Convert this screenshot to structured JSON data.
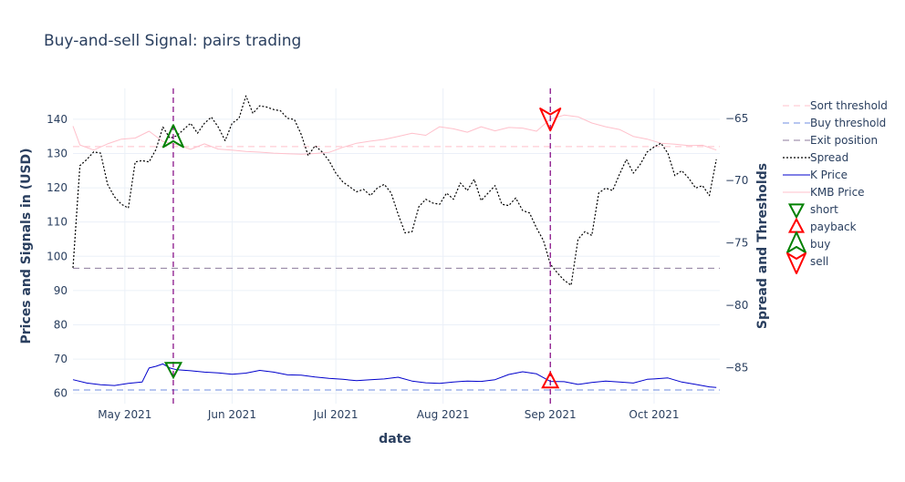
{
  "chart_data": {
    "type": "line",
    "title": "Buy-and-sell Signal: pairs trading",
    "xlabel": "date",
    "ylabel_left": "Prices and Signals in (USD)",
    "ylabel_right": "Spread and Thresholds",
    "x_range": [
      "2021-04-16",
      "2021-10-20"
    ],
    "x_ticks": [
      {
        "date": "2021-05-01",
        "label": "May 2021"
      },
      {
        "date": "2021-06-01",
        "label": "Jun 2021"
      },
      {
        "date": "2021-07-01",
        "label": "Jul 2021"
      },
      {
        "date": "2021-08-01",
        "label": "Aug 2021"
      },
      {
        "date": "2021-09-01",
        "label": "Sep 2021"
      },
      {
        "date": "2021-10-01",
        "label": "Oct 2021"
      }
    ],
    "y_left_range": [
      57,
      149
    ],
    "y_left_ticks": [
      60,
      70,
      80,
      90,
      100,
      110,
      120,
      130,
      140
    ],
    "y_right_range": [
      -87.9,
      -62.6
    ],
    "y_right_ticks": [
      -85,
      -80,
      -75,
      -70,
      -65
    ],
    "grid": true,
    "legend_position": "right",
    "colors": {
      "sort_threshold": "#ffc0cb",
      "buy_threshold": "#6f8ee0",
      "exit_position": "#8c7b9c",
      "spread": "#000000",
      "k_price": "#0000cc",
      "kmb_price": "#ffc0cb",
      "short": "#008000",
      "payback": "#ff0000",
      "buy": "#008000",
      "sell": "#ff0000",
      "signal_lines": "#800080",
      "text": "#2a3f5f",
      "grid": "#ebf0f8"
    },
    "legend": [
      {
        "key": "sort",
        "label": "Sort threshold",
        "kind": "dash",
        "color": "#ffc0cb"
      },
      {
        "key": "buy_thr",
        "label": "Buy threshold",
        "kind": "dash",
        "color": "#6f8ee0"
      },
      {
        "key": "exit",
        "label": "Exit position",
        "kind": "dash",
        "color": "#8c7b9c"
      },
      {
        "key": "spread",
        "label": "Spread",
        "kind": "dot",
        "color": "#000000"
      },
      {
        "key": "k",
        "label": "K Price",
        "kind": "line",
        "color": "#0000cc"
      },
      {
        "key": "kmb",
        "label": "KMB Price",
        "kind": "line",
        "color": "#ffc0cb"
      },
      {
        "key": "short",
        "label": "short",
        "kind": "tri-down",
        "color": "#008000"
      },
      {
        "key": "payback",
        "label": "payback",
        "kind": "tri-up",
        "color": "#ff0000"
      },
      {
        "key": "buy_sig",
        "label": "buy",
        "kind": "tri-up-big",
        "color": "#008000"
      },
      {
        "key": "sell_sig",
        "label": "sell",
        "kind": "tri-down-big",
        "color": "#ff0000"
      }
    ],
    "series": [
      {
        "name": "Sort threshold",
        "axis": "left",
        "style": "dash",
        "x": [
          "2021-04-16",
          "2021-10-20"
        ],
        "values": [
          132,
          132
        ]
      },
      {
        "name": "Buy threshold",
        "axis": "left",
        "style": "dash",
        "x": [
          "2021-04-16",
          "2021-10-20"
        ],
        "values": [
          61,
          61
        ]
      },
      {
        "name": "Exit position",
        "axis": "left",
        "style": "dash",
        "x": [
          "2021-04-16",
          "2021-10-20"
        ],
        "values": [
          96.5,
          96.5
        ]
      },
      {
        "name": "Spread",
        "axis": "right",
        "style": "dot",
        "x": [
          "2021-04-16",
          "2021-04-18",
          "2021-04-20",
          "2021-04-22",
          "2021-04-24",
          "2021-04-26",
          "2021-04-28",
          "2021-04-30",
          "2021-05-02",
          "2021-05-04",
          "2021-05-06",
          "2021-05-08",
          "2021-05-10",
          "2021-05-12",
          "2021-05-14",
          "2021-05-16",
          "2021-05-18",
          "2021-05-20",
          "2021-05-22",
          "2021-05-24",
          "2021-05-26",
          "2021-05-28",
          "2021-05-30",
          "2021-06-01",
          "2021-06-03",
          "2021-06-05",
          "2021-06-07",
          "2021-06-09",
          "2021-06-11",
          "2021-06-13",
          "2021-06-15",
          "2021-06-17",
          "2021-06-19",
          "2021-06-21",
          "2021-06-23",
          "2021-06-25",
          "2021-06-27",
          "2021-06-29",
          "2021-07-01",
          "2021-07-03",
          "2021-07-05",
          "2021-07-07",
          "2021-07-09",
          "2021-07-11",
          "2021-07-13",
          "2021-07-15",
          "2021-07-17",
          "2021-07-19",
          "2021-07-21",
          "2021-07-23",
          "2021-07-25",
          "2021-07-27",
          "2021-07-29",
          "2021-07-31",
          "2021-08-02",
          "2021-08-04",
          "2021-08-06",
          "2021-08-08",
          "2021-08-10",
          "2021-08-12",
          "2021-08-14",
          "2021-08-16",
          "2021-08-18",
          "2021-08-20",
          "2021-08-22",
          "2021-08-24",
          "2021-08-26",
          "2021-08-28",
          "2021-08-30",
          "2021-09-01",
          "2021-09-03",
          "2021-09-05",
          "2021-09-07",
          "2021-09-09",
          "2021-09-11",
          "2021-09-13",
          "2021-09-15",
          "2021-09-17",
          "2021-09-19",
          "2021-09-21",
          "2021-09-23",
          "2021-09-25",
          "2021-09-27",
          "2021-09-29",
          "2021-10-01",
          "2021-10-03",
          "2021-10-05",
          "2021-10-07",
          "2021-10-09",
          "2021-10-11",
          "2021-10-13",
          "2021-10-15",
          "2021-10-17",
          "2021-10-19"
        ],
        "values": [
          -77.0,
          -68.8,
          -68.3,
          -67.7,
          -67.8,
          -70.3,
          -71.3,
          -71.9,
          -72.2,
          -68.5,
          -68.4,
          -68.5,
          -67.5,
          -65.7,
          -66.6,
          -66.4,
          -65.9,
          -65.4,
          -66.2,
          -65.4,
          -64.9,
          -65.7,
          -66.8,
          -65.4,
          -65.0,
          -63.2,
          -64.6,
          -64.0,
          -64.1,
          -64.3,
          -64.4,
          -65.0,
          -65.1,
          -66.3,
          -68.0,
          -67.2,
          -67.7,
          -68.4,
          -69.4,
          -70.1,
          -70.5,
          -70.9,
          -70.7,
          -71.2,
          -70.6,
          -70.3,
          -71.0,
          -72.7,
          -74.2,
          -74.1,
          -72.1,
          -71.5,
          -71.8,
          -71.9,
          -71.0,
          -71.5,
          -70.2,
          -70.8,
          -69.9,
          -71.6,
          -71.0,
          -70.4,
          -71.9,
          -72.0,
          -71.4,
          -72.4,
          -72.6,
          -73.8,
          -74.8,
          -76.7,
          -77.4,
          -78.0,
          -78.4,
          -74.7,
          -74.1,
          -74.4,
          -71.0,
          -70.6,
          -70.8,
          -69.5,
          -68.3,
          -69.4,
          -68.7,
          -67.7,
          -67.3,
          -67.0,
          -67.8,
          -69.6,
          -69.2,
          -69.8,
          -70.6,
          -70.4,
          -71.2,
          -68.3
        ]
      },
      {
        "name": "K Price",
        "axis": "left",
        "style": "line",
        "x": [
          "2021-04-16",
          "2021-04-20",
          "2021-04-24",
          "2021-04-28",
          "2021-05-02",
          "2021-05-06",
          "2021-05-08",
          "2021-05-10",
          "2021-05-12",
          "2021-05-14",
          "2021-05-16",
          "2021-05-20",
          "2021-05-24",
          "2021-05-28",
          "2021-06-01",
          "2021-06-05",
          "2021-06-09",
          "2021-06-13",
          "2021-06-17",
          "2021-06-21",
          "2021-06-25",
          "2021-06-29",
          "2021-07-03",
          "2021-07-07",
          "2021-07-11",
          "2021-07-15",
          "2021-07-19",
          "2021-07-23",
          "2021-07-27",
          "2021-07-31",
          "2021-08-04",
          "2021-08-08",
          "2021-08-12",
          "2021-08-16",
          "2021-08-20",
          "2021-08-24",
          "2021-08-28",
          "2021-09-01",
          "2021-09-05",
          "2021-09-09",
          "2021-09-13",
          "2021-09-17",
          "2021-09-21",
          "2021-09-25",
          "2021-09-29",
          "2021-10-01",
          "2021-10-05",
          "2021-10-09",
          "2021-10-13",
          "2021-10-17",
          "2021-10-19"
        ],
        "values": [
          64.0,
          63.0,
          62.5,
          62.3,
          62.9,
          63.3,
          67.4,
          67.9,
          68.6,
          67.4,
          66.9,
          66.6,
          66.2,
          66.0,
          65.6,
          65.9,
          66.7,
          66.2,
          65.4,
          65.3,
          64.8,
          64.4,
          64.1,
          63.7,
          64.0,
          64.2,
          64.7,
          63.6,
          63.1,
          62.9,
          63.3,
          63.6,
          63.5,
          64.0,
          65.5,
          66.3,
          65.7,
          63.5,
          63.4,
          62.6,
          63.2,
          63.6,
          63.3,
          63.0,
          64.1,
          64.2,
          64.5,
          63.3,
          62.6,
          61.9,
          61.7
        ]
      },
      {
        "name": "KMB Price",
        "axis": "left",
        "style": "line",
        "x": [
          "2021-04-16",
          "2021-04-18",
          "2021-04-22",
          "2021-04-26",
          "2021-04-30",
          "2021-05-04",
          "2021-05-08",
          "2021-05-12",
          "2021-05-16",
          "2021-05-20",
          "2021-05-24",
          "2021-05-28",
          "2021-06-01",
          "2021-06-05",
          "2021-06-09",
          "2021-06-13",
          "2021-06-17",
          "2021-06-21",
          "2021-06-25",
          "2021-06-29",
          "2021-07-03",
          "2021-07-07",
          "2021-07-11",
          "2021-07-15",
          "2021-07-19",
          "2021-07-23",
          "2021-07-27",
          "2021-07-31",
          "2021-08-04",
          "2021-08-08",
          "2021-08-12",
          "2021-08-16",
          "2021-08-20",
          "2021-08-24",
          "2021-08-28",
          "2021-09-01",
          "2021-09-05",
          "2021-09-09",
          "2021-09-13",
          "2021-09-17",
          "2021-09-21",
          "2021-09-25",
          "2021-09-29",
          "2021-10-03",
          "2021-10-07",
          "2021-10-11",
          "2021-10-15",
          "2021-10-19"
        ],
        "values": [
          138.0,
          132.5,
          131.0,
          132.8,
          134.2,
          134.5,
          136.5,
          133.5,
          132.6,
          131.2,
          132.8,
          131.3,
          131.0,
          130.6,
          130.4,
          130.1,
          129.9,
          129.8,
          130.0,
          130.3,
          131.8,
          133.0,
          133.6,
          134.1,
          135.0,
          135.9,
          135.3,
          137.8,
          137.2,
          136.2,
          137.8,
          136.6,
          137.6,
          137.4,
          136.5,
          140.0,
          141.2,
          140.7,
          138.9,
          137.8,
          137.0,
          135.0,
          134.2,
          133.0,
          132.7,
          132.3,
          132.4,
          131.0
        ]
      }
    ],
    "signals": {
      "vlines": [
        "2021-05-15",
        "2021-09-01"
      ],
      "short": [
        {
          "x": "2021-05-15",
          "y": 67.2
        }
      ],
      "payback": [
        {
          "x": "2021-09-01",
          "y": 63.4
        }
      ],
      "buy": [
        {
          "x": "2021-05-15",
          "y": 134.5
        }
      ],
      "sell": [
        {
          "x": "2021-09-01",
          "y": 140.5
        }
      ]
    }
  }
}
